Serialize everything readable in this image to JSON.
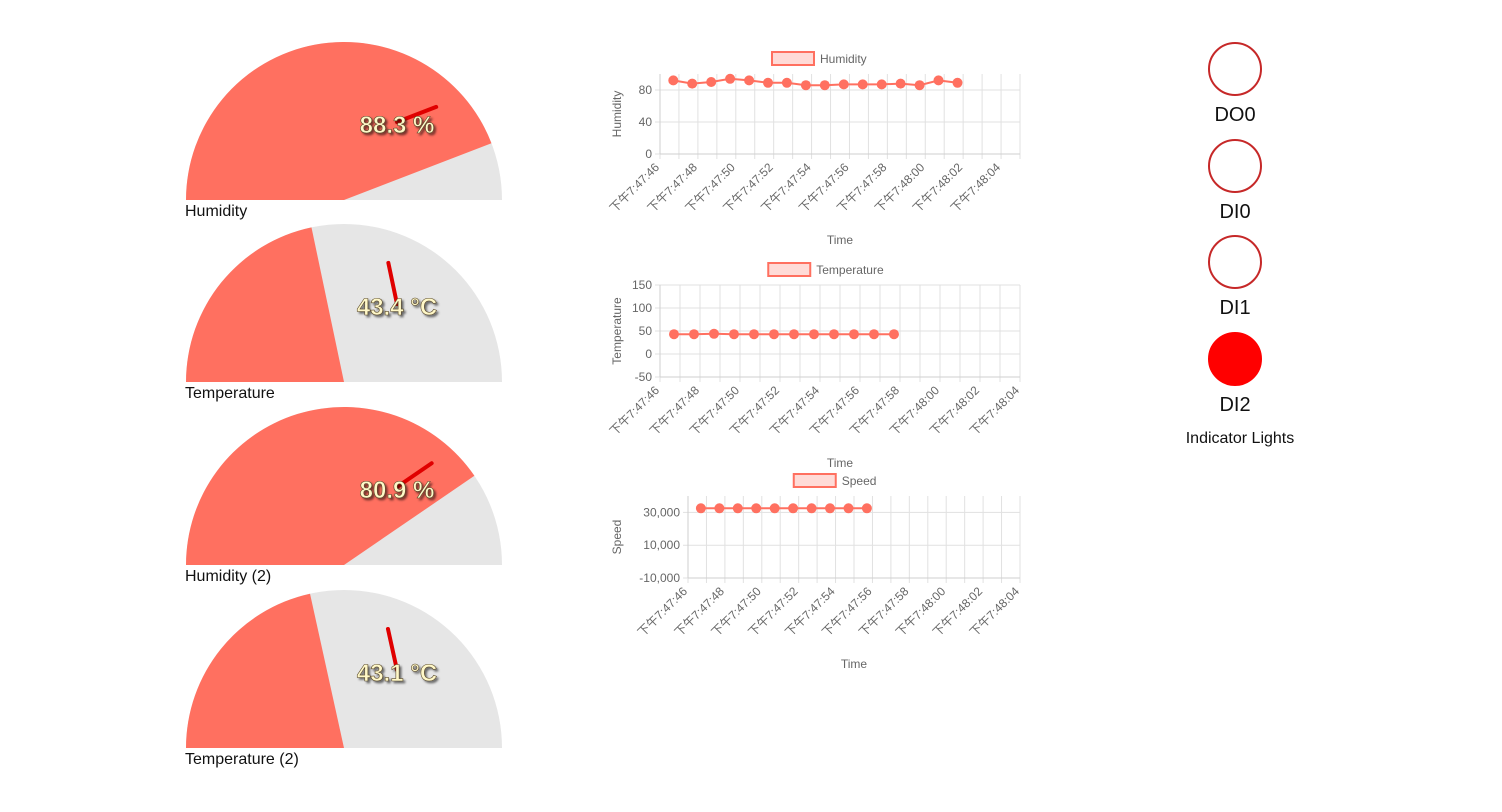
{
  "colors": {
    "fill": "#ff7060",
    "track": "#e6e6e6",
    "needle": "#e00000",
    "value_text": "#fff8c8",
    "light_on": "#ff0000",
    "light_off": "#ffffff",
    "light_border": "#c62828"
  },
  "gauges": [
    {
      "label": "Humidity",
      "value": 88.3,
      "display": "88.3 %",
      "max": 100
    },
    {
      "label": "Temperature",
      "value": 43.4,
      "display": "43.4 °C",
      "max": 100
    },
    {
      "label": "Humidity (2)",
      "value": 80.9,
      "display": "80.9 %",
      "max": 100
    },
    {
      "label": "Temperature (2)",
      "value": 43.1,
      "display": "43.1 °C",
      "max": 100
    }
  ],
  "chart_data": [
    {
      "type": "line",
      "legend": "Humidity",
      "ylabel": "Humidity",
      "xlabel": "Time",
      "y_ticks": [
        "80",
        "40",
        "0"
      ],
      "y_tick_values": [
        80,
        40,
        0
      ],
      "ylim": [
        0,
        100
      ],
      "x_ticks": [
        "下午7:47:46",
        "下午7:47:48",
        "下午7:47:50",
        "下午7:47:52",
        "下午7:47:54",
        "下午7:47:56",
        "下午7:47:58",
        "下午7:48:00",
        "下午7:48:02",
        "下午7:48:04"
      ],
      "xlim": [
        0,
        19
      ],
      "x": [
        0.7,
        1.7,
        2.7,
        3.7,
        4.7,
        5.7,
        6.7,
        7.7,
        8.7,
        9.7,
        10.7,
        11.7,
        12.7,
        13.7,
        14.7,
        15.7
      ],
      "values": [
        92,
        88,
        90,
        94,
        92,
        89,
        89,
        86,
        86,
        87,
        87,
        87,
        88,
        86,
        92,
        89
      ]
    },
    {
      "type": "line",
      "legend": "Temperature",
      "ylabel": "Temperature",
      "xlabel": "Time",
      "y_ticks": [
        "150",
        "100",
        "50",
        "0",
        "-50"
      ],
      "y_tick_values": [
        150,
        100,
        50,
        0,
        -50
      ],
      "ylim": [
        -50,
        150
      ],
      "x_ticks": [
        "下午7:47:46",
        "下午7:47:48",
        "下午7:47:50",
        "下午7:47:52",
        "下午7:47:54",
        "下午7:47:56",
        "下午7:47:58",
        "下午7:48:00",
        "下午7:48:02",
        "下午7:48:04"
      ],
      "xlim": [
        0,
        18
      ],
      "x": [
        0.7,
        1.7,
        2.7,
        3.7,
        4.7,
        5.7,
        6.7,
        7.7,
        8.7,
        9.7,
        10.7,
        11.7
      ],
      "values": [
        43,
        43,
        44,
        43,
        43,
        43,
        43,
        43,
        43,
        43,
        43,
        43
      ]
    },
    {
      "type": "line",
      "legend": "Speed",
      "ylabel": "Speed",
      "xlabel": "Time",
      "y_ticks": [
        "30,000",
        "10,000",
        "-10,000"
      ],
      "y_tick_values": [
        30000,
        10000,
        -10000
      ],
      "ylim": [
        -10000,
        40000
      ],
      "x_ticks": [
        "下午7:47:46",
        "下午7:47:48",
        "下午7:47:50",
        "下午7:47:52",
        "下午7:47:54",
        "下午7:47:56",
        "下午7:47:58",
        "下午7:48:00",
        "下午7:48:02",
        "下午7:48:04"
      ],
      "xlim": [
        0,
        18
      ],
      "x": [
        0.7,
        1.7,
        2.7,
        3.7,
        4.7,
        5.7,
        6.7,
        7.7,
        8.7,
        9.7
      ],
      "values": [
        32500,
        32500,
        32500,
        32500,
        32500,
        32500,
        32500,
        32500,
        32500,
        32500
      ]
    }
  ],
  "lights": {
    "title": "Indicator Lights",
    "items": [
      {
        "label": "DO0",
        "on": false
      },
      {
        "label": "DI0",
        "on": false
      },
      {
        "label": "DI1",
        "on": false
      },
      {
        "label": "DI2",
        "on": true
      }
    ]
  }
}
